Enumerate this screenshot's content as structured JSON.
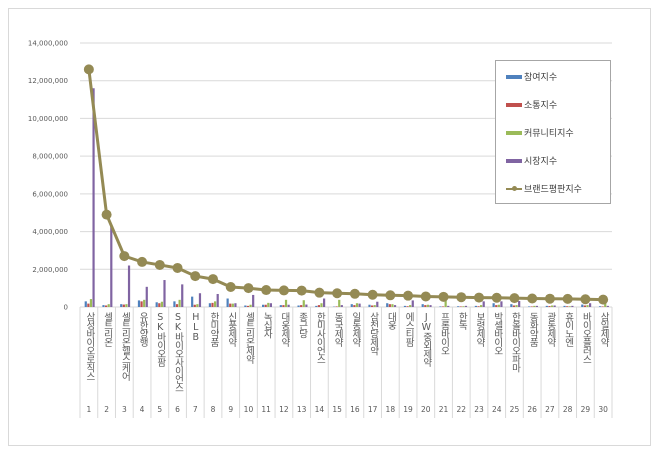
{
  "chart_data": {
    "type": "bar",
    "title": "",
    "xlabel": "",
    "ylabel": "",
    "ylim": [
      0,
      14000000
    ],
    "yticks": [
      "0",
      "2,000,000",
      "4,000,000",
      "6,000,000",
      "8,000,000",
      "10,000,000",
      "12,000,000",
      "14,000,000"
    ],
    "grid": true,
    "legend_position": "top-right",
    "categories": [
      "삼성바이오로직스",
      "셀트리온",
      "셀트리온헬스케어",
      "유한양행",
      "SK바이오팜",
      "SK바이오사이언스",
      "HLB",
      "한미약품",
      "신풍제약",
      "셀트리온제약",
      "녹십자",
      "대웅제약",
      "종근당",
      "한미사이언스",
      "동국제약",
      "일동제약",
      "삼천당제약",
      "대웅",
      "에스티팜",
      "JW중외제약",
      "프롬바이오",
      "한독",
      "보령제약",
      "박셀바이오",
      "한올바이오파마",
      "동화약품",
      "광동제약",
      "휴이노엔",
      "바이오플러스",
      "삼일제약"
    ],
    "ranks": [
      "1",
      "2",
      "3",
      "4",
      "5",
      "6",
      "7",
      "8",
      "9",
      "10",
      "11",
      "12",
      "13",
      "14",
      "15",
      "16",
      "17",
      "18",
      "19",
      "20",
      "21",
      "22",
      "23",
      "24",
      "25",
      "26",
      "27",
      "28",
      "29",
      "30"
    ],
    "series": [
      {
        "name": "참여지수",
        "color": "#4f81bd",
        "values": [
          300000,
          100000,
          150000,
          350000,
          250000,
          300000,
          550000,
          200000,
          450000,
          80000,
          120000,
          100000,
          80000,
          60000,
          20000,
          150000,
          120000,
          200000,
          60000,
          150000,
          30000,
          40000,
          60000,
          200000,
          150000,
          30000,
          60000,
          60000,
          130000,
          40000
        ]
      },
      {
        "name": "소통지수",
        "color": "#c0504d",
        "values": [
          180000,
          80000,
          130000,
          300000,
          200000,
          150000,
          120000,
          220000,
          180000,
          60000,
          120000,
          100000,
          100000,
          100000,
          30000,
          100000,
          80000,
          150000,
          40000,
          100000,
          30000,
          30000,
          40000,
          100000,
          80000,
          30000,
          50000,
          40000,
          80000,
          30000
        ]
      },
      {
        "name": "커뮤니티지수",
        "color": "#9bbb59",
        "values": [
          420000,
          150000,
          150000,
          380000,
          280000,
          380000,
          150000,
          300000,
          180000,
          120000,
          220000,
          380000,
          360000,
          200000,
          380000,
          200000,
          100000,
          150000,
          100000,
          120000,
          360000,
          40000,
          100000,
          120000,
          100000,
          60000,
          80000,
          40000,
          100000,
          300000
        ]
      },
      {
        "name": "시장지수",
        "color": "#8064a2",
        "values": [
          11600000,
          4300000,
          2200000,
          1070000,
          1430000,
          1200000,
          730000,
          690000,
          200000,
          640000,
          200000,
          120000,
          130000,
          450000,
          100000,
          180000,
          280000,
          100000,
          350000,
          100000,
          60000,
          60000,
          300000,
          300000,
          320000,
          60000,
          80000,
          60000,
          200000,
          60000
        ]
      }
    ],
    "line": {
      "name": "브랜드평판지수",
      "color": "#948a54",
      "values": [
        12600000,
        4900000,
        2700000,
        2390000,
        2230000,
        2070000,
        1640000,
        1480000,
        1060000,
        1000000,
        900000,
        880000,
        870000,
        760000,
        730000,
        700000,
        650000,
        620000,
        600000,
        560000,
        540000,
        520000,
        500000,
        490000,
        470000,
        450000,
        440000,
        430000,
        410000,
        390000
      ]
    }
  }
}
